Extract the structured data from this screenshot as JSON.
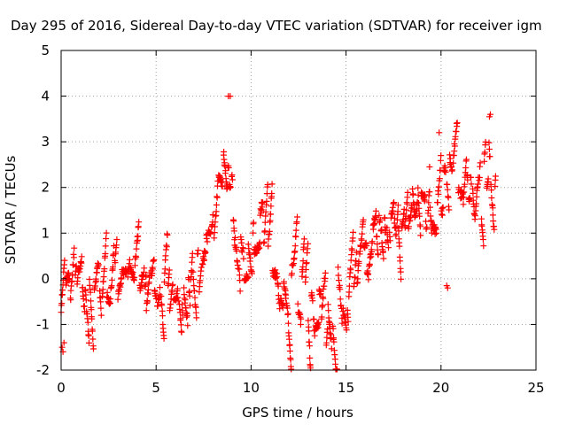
{
  "chart_data": {
    "type": "scatter",
    "title": "Day 295 of 2016, Sidereal Day-to-day VTEC variation (SDTVAR) for receiver igm",
    "xlabel": "GPS time / hours",
    "ylabel": "SDTVAR / TECUs",
    "xlim": [
      0,
      25
    ],
    "ylim": [
      -2,
      5
    ],
    "xticks": [
      0,
      5,
      10,
      15,
      20,
      25
    ],
    "yticks": [
      -2,
      -1,
      0,
      1,
      2,
      3,
      4,
      5
    ],
    "grid": true,
    "marker": "plus",
    "color": "#ff0000",
    "trend": [
      [
        0.0,
        -0.2,
        0.5
      ],
      [
        0.3,
        -0.3,
        0.5
      ],
      [
        0.6,
        -0.2,
        0.4
      ],
      [
        1.0,
        -0.1,
        0.4
      ],
      [
        1.5,
        -0.2,
        0.4
      ],
      [
        2.0,
        0.0,
        0.4
      ],
      [
        2.5,
        -0.2,
        0.5
      ],
      [
        3.0,
        0.0,
        0.5
      ],
      [
        3.5,
        -0.3,
        0.5
      ],
      [
        4.0,
        0.1,
        0.5
      ],
      [
        4.5,
        -0.4,
        0.5
      ],
      [
        5.0,
        -0.3,
        0.5
      ],
      [
        5.5,
        -0.2,
        0.5
      ],
      [
        6.0,
        -0.2,
        0.5
      ],
      [
        6.5,
        0.0,
        0.5
      ],
      [
        7.0,
        0.1,
        0.5
      ],
      [
        7.5,
        0.3,
        0.6
      ],
      [
        8.0,
        1.3,
        0.7
      ],
      [
        8.5,
        2.6,
        0.6
      ],
      [
        8.8,
        2.0,
        0.6
      ],
      [
        9.0,
        1.6,
        0.6
      ],
      [
        9.3,
        0.6,
        0.4
      ],
      [
        9.7,
        0.3,
        0.4
      ],
      [
        10.0,
        0.7,
        0.3
      ],
      [
        10.5,
        1.2,
        0.6
      ],
      [
        11.0,
        0.6,
        0.6
      ],
      [
        11.5,
        0.2,
        0.6
      ],
      [
        12.0,
        -0.6,
        0.6
      ],
      [
        12.5,
        0.0,
        0.7
      ],
      [
        13.0,
        -0.4,
        0.6
      ],
      [
        13.5,
        -0.5,
        0.6
      ],
      [
        14.0,
        -1.1,
        0.6
      ],
      [
        14.5,
        -0.3,
        0.7
      ],
      [
        15.0,
        -1.0,
        0.5
      ],
      [
        15.5,
        0.0,
        0.5
      ],
      [
        16.0,
        0.3,
        0.5
      ],
      [
        16.5,
        0.9,
        0.4
      ],
      [
        17.0,
        1.3,
        0.4
      ],
      [
        17.5,
        1.4,
        0.3
      ],
      [
        18.0,
        1.3,
        0.4
      ],
      [
        18.5,
        1.7,
        0.4
      ],
      [
        19.0,
        1.6,
        0.4
      ],
      [
        19.5,
        1.4,
        0.4
      ],
      [
        20.0,
        1.9,
        0.5
      ],
      [
        20.5,
        2.2,
        0.5
      ],
      [
        21.0,
        2.3,
        0.5
      ],
      [
        21.5,
        1.8,
        0.5
      ],
      [
        22.0,
        1.6,
        0.6
      ],
      [
        22.5,
        2.7,
        0.6
      ],
      [
        22.9,
        2.3,
        0.6
      ]
    ],
    "outliers": [
      [
        0.1,
        -1.6
      ],
      [
        0.05,
        -1.5
      ],
      [
        0.15,
        -1.4
      ],
      [
        8.8,
        4.0
      ],
      [
        8.9,
        4.0
      ],
      [
        20.3,
        -0.15
      ],
      [
        20.35,
        -0.2
      ],
      [
        19.4,
        2.45
      ],
      [
        19.9,
        3.2
      ],
      [
        22.6,
        3.6
      ],
      [
        22.55,
        3.55
      ]
    ]
  }
}
